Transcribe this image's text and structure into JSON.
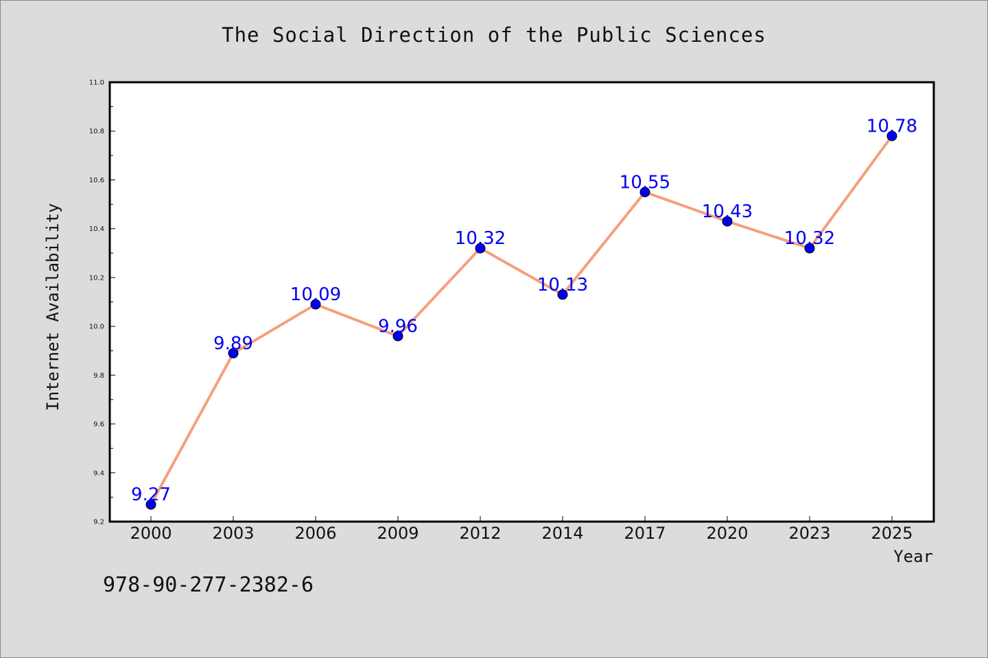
{
  "chart_data": {
    "type": "line",
    "title": "The Social Direction of the Public Sciences",
    "xlabel": "Year",
    "ylabel": "Internet Availability",
    "categories": [
      "2000",
      "2003",
      "2006",
      "2009",
      "2012",
      "2014",
      "2017",
      "2020",
      "2023",
      "2025"
    ],
    "series": [
      {
        "values": [
          9.27,
          9.89,
          10.09,
          9.96,
          10.32,
          10.13,
          10.55,
          10.43,
          10.32,
          10.78
        ],
        "line_color": "#f4a07c",
        "marker_color": "#0000ee",
        "label_color": "#0000ee"
      }
    ],
    "data_labels": [
      "9.27",
      "9.89",
      "10.09",
      "9.96",
      "10.32",
      "10.13",
      "10.55",
      "10.43",
      "10.32",
      "10.78"
    ],
    "ylim": [
      9.2,
      11.0
    ],
    "yticks": [
      "9.2",
      "9.4",
      "9.6",
      "9.8",
      "10.0",
      "10.2",
      "10.4",
      "10.6",
      "10.8",
      "11.0"
    ],
    "ytick_values": [
      9.2,
      9.4,
      9.6,
      9.8,
      10.0,
      10.2,
      10.4,
      10.6,
      10.8,
      11.0
    ],
    "yminor_ticks": [
      9.3,
      9.5,
      9.7,
      9.9,
      10.1,
      10.3,
      10.5,
      10.7,
      10.9
    ],
    "grid": false,
    "legend": "none"
  },
  "footer": {
    "isbn": "978-90-277-2382-6"
  },
  "colors": {
    "background": "#dcdcdc",
    "plot_background": "#ffffff",
    "axis": "#000000"
  }
}
